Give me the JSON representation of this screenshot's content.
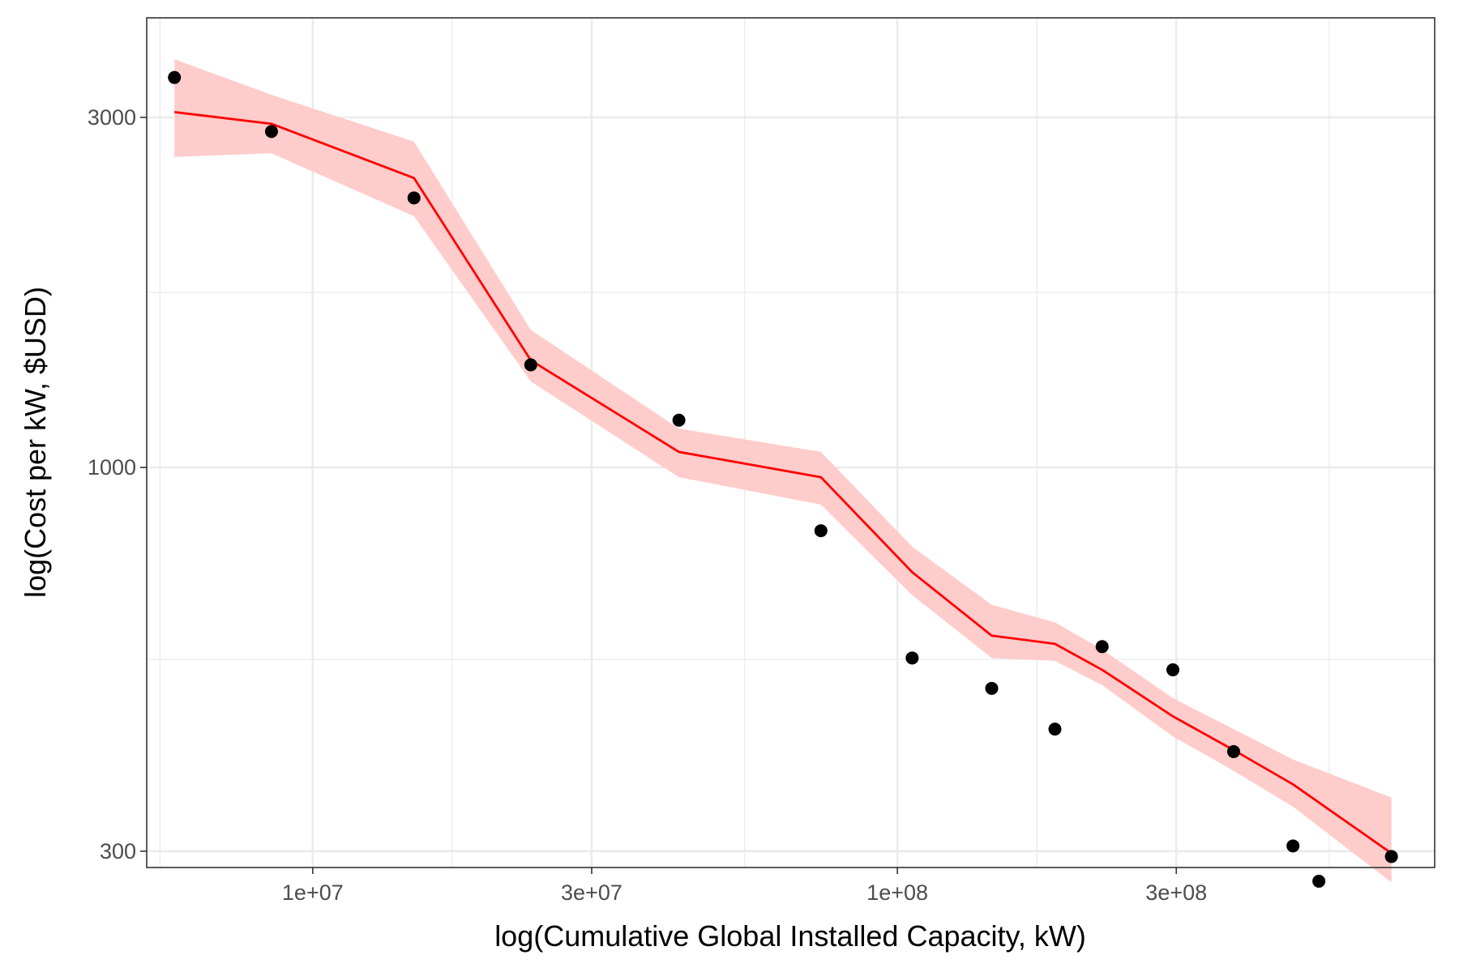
{
  "chart_data": {
    "type": "scatter",
    "xlabel": "log(Cumulative Global Installed Capacity, kW)",
    "ylabel": "log(Cost per kW, $USD)",
    "x_scale": "log10",
    "y_scale": "log10",
    "xlim": [
      5200000,
      830000000
    ],
    "ylim": [
      285,
      4100
    ],
    "x_ticks": [
      {
        "value": 10000000,
        "label": "1e+07"
      },
      {
        "value": 30000000,
        "label": "3e+07"
      },
      {
        "value": 100000000,
        "label": "1e+08"
      },
      {
        "value": 300000000,
        "label": "3e+08"
      }
    ],
    "x_minor_grid": [
      5480000.0,
      17320000.0,
      54800000.0,
      173200000.0,
      548000000.0
    ],
    "y_ticks": [
      {
        "value": 300,
        "label": "300"
      },
      {
        "value": 1000,
        "label": "1000"
      },
      {
        "value": 3000,
        "label": "3000"
      }
    ],
    "y_minor_grid": [
      547.7,
      1732
    ],
    "grid": true,
    "series": [
      {
        "kind": "points",
        "color": "#000000",
        "x": [
          5800000,
          8500000,
          14900000,
          23600000,
          42300000,
          74000000,
          106000000,
          145000000,
          186000000,
          224000000,
          296000000,
          376000000,
          475000000,
          526000000,
          700000000
        ],
        "y": [
          3400,
          2870,
          2330,
          1380,
          1160,
          820,
          550,
          500,
          440,
          570,
          530,
          410,
          305,
          273,
          295
        ]
      },
      {
        "kind": "line",
        "color": "#ff0000",
        "x": [
          5800000,
          8500000,
          14900000,
          23600000,
          42300000,
          74000000,
          106000000,
          145000000,
          186000000,
          224000000,
          296000000,
          376000000,
          475000000,
          700000000
        ],
        "y": [
          3050,
          2940,
          2480,
          1400,
          1050,
          970,
          720,
          590,
          575,
          530,
          458,
          412,
          370,
          298
        ]
      },
      {
        "kind": "ribbon",
        "color": "#ffcccc",
        "x": [
          5800000,
          8500000,
          14900000,
          23600000,
          42300000,
          74000000,
          106000000,
          145000000,
          186000000,
          224000000,
          296000000,
          376000000,
          475000000,
          700000000
        ],
        "lower": [
          2650,
          2680,
          2200,
          1310,
          970,
          890,
          670,
          550,
          545,
          505,
          430,
          386,
          345,
          272
        ],
        "upper": [
          3600,
          3220,
          2780,
          1540,
          1130,
          1050,
          780,
          650,
          615,
          565,
          485,
          440,
          400,
          355
        ]
      }
    ]
  }
}
